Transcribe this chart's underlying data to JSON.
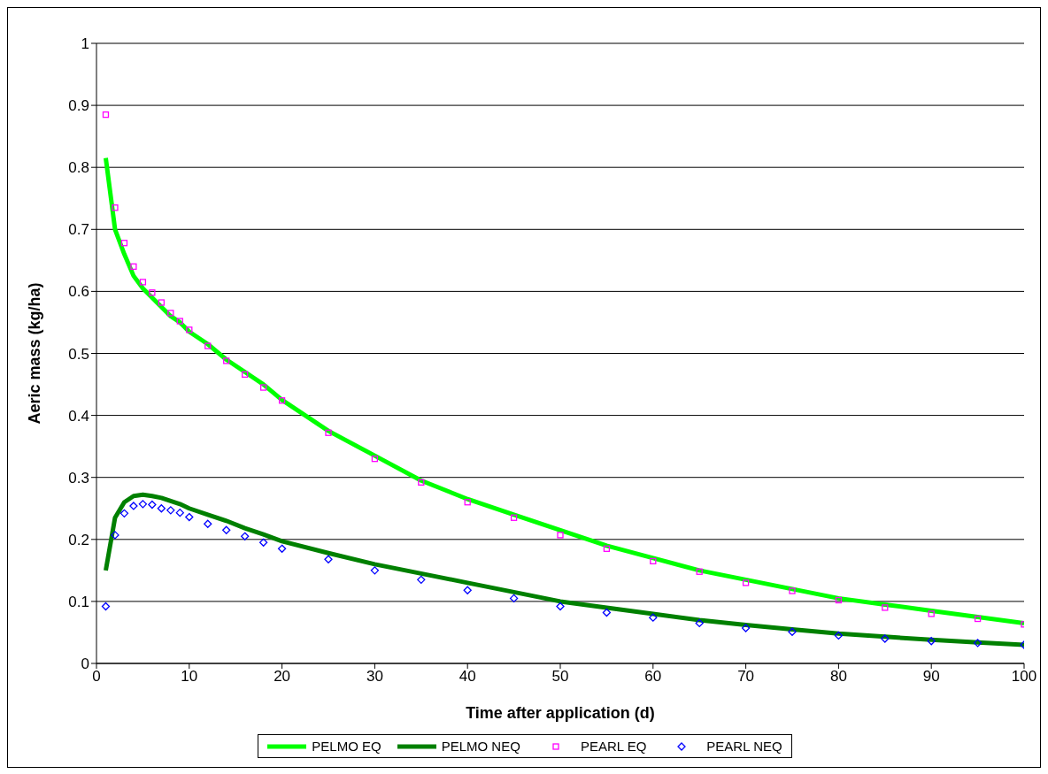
{
  "chart_data": {
    "type": "line",
    "xlabel": "Time after application (d)",
    "ylabel": "Aeric mass (kg/ha)",
    "x": [
      1,
      2,
      3,
      4,
      5,
      6,
      7,
      8,
      9,
      10,
      12,
      14,
      16,
      18,
      20,
      25,
      30,
      35,
      40,
      45,
      50,
      55,
      60,
      65,
      70,
      75,
      80,
      85,
      90,
      95,
      100
    ],
    "series": [
      {
        "name": "PELMO EQ",
        "marker": "none",
        "color": "#00ff00",
        "values": [
          0.815,
          0.7,
          0.66,
          0.625,
          0.605,
          0.59,
          0.575,
          0.56,
          0.55,
          0.535,
          0.515,
          0.49,
          0.47,
          0.45,
          0.425,
          0.375,
          0.335,
          0.295,
          0.265,
          0.24,
          0.215,
          0.19,
          0.17,
          0.15,
          0.135,
          0.12,
          0.105,
          0.095,
          0.085,
          0.075,
          0.065
        ]
      },
      {
        "name": "PELMO NEQ",
        "marker": "none",
        "color": "#008000",
        "values": [
          0.15,
          0.235,
          0.26,
          0.27,
          0.272,
          0.27,
          0.267,
          0.262,
          0.257,
          0.25,
          0.24,
          0.23,
          0.218,
          0.208,
          0.197,
          0.178,
          0.16,
          0.145,
          0.13,
          0.115,
          0.1,
          0.09,
          0.08,
          0.07,
          0.062,
          0.055,
          0.048,
          0.043,
          0.038,
          0.034,
          0.03
        ]
      },
      {
        "name": "PEARL EQ",
        "type": "scatter",
        "marker": "square",
        "color": "#ff00ff",
        "values": [
          0.885,
          0.735,
          0.678,
          0.64,
          0.615,
          0.598,
          0.582,
          0.565,
          0.552,
          0.538,
          0.512,
          0.488,
          0.466,
          0.445,
          0.424,
          0.372,
          0.33,
          0.292,
          0.26,
          0.235,
          0.207,
          0.185,
          0.165,
          0.148,
          0.13,
          0.117,
          0.102,
          0.09,
          0.08,
          0.072,
          0.063
        ]
      },
      {
        "name": "PEARL NEQ",
        "type": "scatter",
        "marker": "diamond",
        "color": "#0000ff",
        "values": [
          0.092,
          0.207,
          0.242,
          0.254,
          0.257,
          0.256,
          0.25,
          0.247,
          0.243,
          0.236,
          0.225,
          0.215,
          0.205,
          0.195,
          0.185,
          0.168,
          0.15,
          0.135,
          0.118,
          0.105,
          0.092,
          0.082,
          0.074,
          0.065,
          0.057,
          0.051,
          0.045,
          0.04,
          0.036,
          0.033,
          0.03
        ]
      }
    ],
    "xlim": [
      0,
      100
    ],
    "xticks": [
      0,
      10,
      20,
      30,
      40,
      50,
      60,
      70,
      80,
      90,
      100
    ],
    "ylim": [
      0,
      1
    ],
    "yticks": [
      0,
      0.1,
      0.2,
      0.3,
      0.4,
      0.5,
      0.6,
      0.7,
      0.8,
      0.9,
      1
    ],
    "grid": "y",
    "legend": "bottom"
  }
}
